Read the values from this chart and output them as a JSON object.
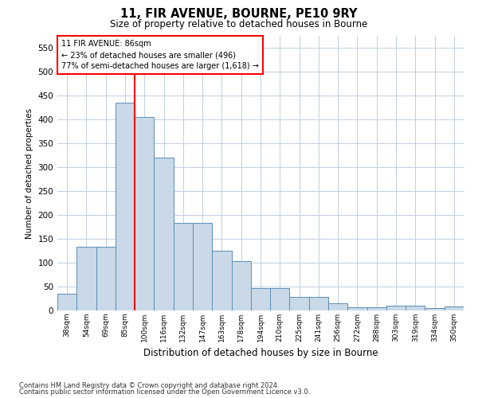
{
  "title": "11, FIR AVENUE, BOURNE, PE10 9RY",
  "subtitle": "Size of property relative to detached houses in Bourne",
  "xlabel": "Distribution of detached houses by size in Bourne",
  "ylabel": "Number of detached properties",
  "footnote1": "Contains HM Land Registry data © Crown copyright and database right 2024.",
  "footnote2": "Contains public sector information licensed under the Open Government Licence v3.0.",
  "annotation_line1": "11 FIR AVENUE: 86sqm",
  "annotation_line2": "← 23% of detached houses are smaller (496)",
  "annotation_line3": "77% of semi-detached houses are larger (1,618) →",
  "bar_labels": [
    "38sqm",
    "54sqm",
    "69sqm",
    "85sqm",
    "100sqm",
    "116sqm",
    "132sqm",
    "147sqm",
    "163sqm",
    "178sqm",
    "194sqm",
    "210sqm",
    "225sqm",
    "241sqm",
    "256sqm",
    "272sqm",
    "288sqm",
    "303sqm",
    "319sqm",
    "334sqm",
    "350sqm"
  ],
  "bar_values": [
    35,
    133,
    133,
    435,
    405,
    320,
    183,
    183,
    125,
    103,
    46,
    46,
    29,
    29,
    15,
    7,
    7,
    10,
    10,
    5,
    8
  ],
  "bar_color": "#c9d9e8",
  "bar_edge_color": "#5b8db8",
  "red_line_index": 3,
  "ylim": [
    0,
    575
  ],
  "yticks": [
    0,
    50,
    100,
    150,
    200,
    250,
    300,
    350,
    400,
    450,
    500,
    550
  ],
  "background_color": "#ffffff",
  "grid_color": "#c0cfe0"
}
